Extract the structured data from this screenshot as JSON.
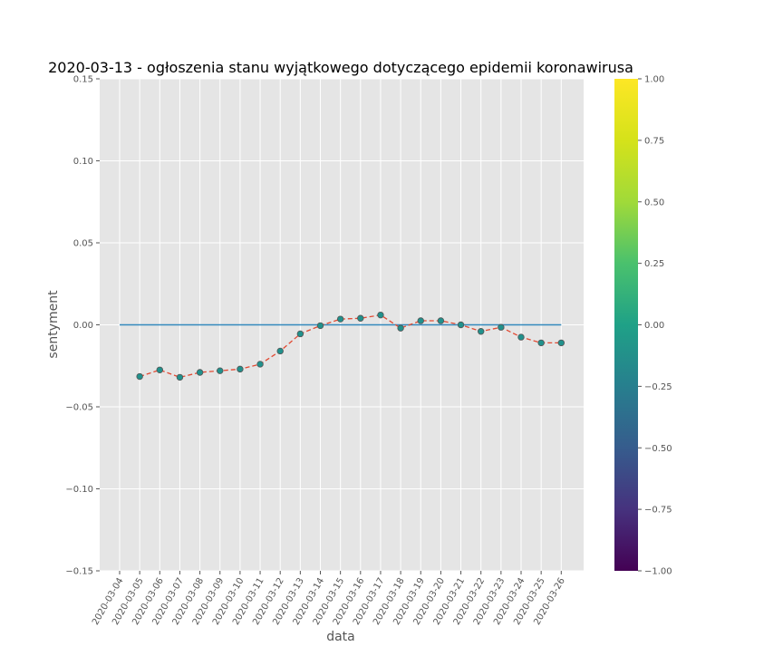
{
  "chart_data": {
    "type": "line",
    "title": "2020-03-13 - ogłoszenia stanu wyjątkowego dotyczącego epidemii koronawirusa",
    "xlabel": "data",
    "ylabel": "sentyment",
    "ylim": [
      -0.15,
      0.15
    ],
    "yticks": [
      0.15,
      0.1,
      0.05,
      0.0,
      -0.05,
      -0.1,
      -0.15
    ],
    "ytick_labels": [
      "0.15",
      "0.10",
      "0.05",
      "0.00",
      "−0.05",
      "−0.10",
      "−0.15"
    ],
    "categories": [
      "2020-03-04",
      "2020-03-05",
      "2020-03-06",
      "2020-03-07",
      "2020-03-08",
      "2020-03-09",
      "2020-03-10",
      "2020-03-11",
      "2020-03-12",
      "2020-03-13",
      "2020-03-14",
      "2020-03-15",
      "2020-03-16",
      "2020-03-17",
      "2020-03-18",
      "2020-03-19",
      "2020-03-20",
      "2020-03-21",
      "2020-03-22",
      "2020-03-23",
      "2020-03-24",
      "2020-03-25",
      "2020-03-26"
    ],
    "series": [
      {
        "style": "dashed-red-with-teal-markers",
        "points": [
          {
            "x": "2020-03-05",
            "y": -0.0315
          },
          {
            "x": "2020-03-06",
            "y": -0.0275
          },
          {
            "x": "2020-03-07",
            "y": -0.032
          },
          {
            "x": "2020-03-08",
            "y": -0.029
          },
          {
            "x": "2020-03-09",
            "y": -0.028
          },
          {
            "x": "2020-03-10",
            "y": -0.027
          },
          {
            "x": "2020-03-11",
            "y": -0.024
          },
          {
            "x": "2020-03-12",
            "y": -0.016
          },
          {
            "x": "2020-03-13",
            "y": -0.0055
          },
          {
            "x": "2020-03-14",
            "y": -0.0005
          },
          {
            "x": "2020-03-15",
            "y": 0.0035
          },
          {
            "x": "2020-03-16",
            "y": 0.004
          },
          {
            "x": "2020-03-17",
            "y": 0.006
          },
          {
            "x": "2020-03-18",
            "y": -0.002
          },
          {
            "x": "2020-03-19",
            "y": 0.0025
          },
          {
            "x": "2020-03-20",
            "y": 0.0025
          },
          {
            "x": "2020-03-21",
            "y": 0.0
          },
          {
            "x": "2020-03-22",
            "y": -0.004
          },
          {
            "x": "2020-03-23",
            "y": -0.0015
          },
          {
            "x": "2020-03-24",
            "y": -0.0075
          },
          {
            "x": "2020-03-25",
            "y": -0.011
          },
          {
            "x": "2020-03-26",
            "y": -0.011
          }
        ]
      }
    ],
    "reference_line": {
      "y": 0.0,
      "from": "2020-03-04",
      "to": "2020-03-26"
    },
    "grid": true,
    "colorbar": {
      "colormap": "viridis",
      "range": [
        -1.0,
        1.0
      ],
      "ticks": [
        1.0,
        0.75,
        0.5,
        0.25,
        0.0,
        -0.25,
        -0.5,
        -0.75,
        -1.0
      ],
      "tick_labels": [
        "1.00",
        "0.75",
        "0.50",
        "0.25",
        "0.00",
        "−0.25",
        "−0.50",
        "−0.75",
        "−1.00"
      ],
      "marker_value": 0.0
    },
    "colors": {
      "plot_background": "#e5e5e5",
      "grid": "#ffffff",
      "line": "#e24a33",
      "marker": "#21918c",
      "marker_edge": "#555555",
      "reference_line": "#348abd"
    }
  }
}
